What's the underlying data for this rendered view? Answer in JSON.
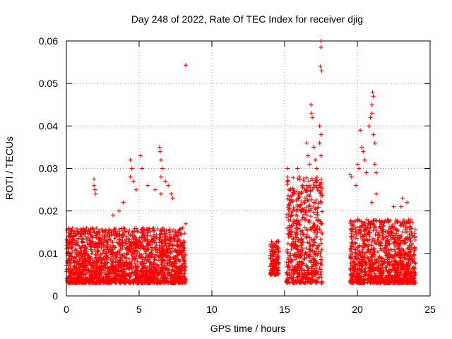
{
  "chart_data": {
    "type": "scatter",
    "title": "Day 248 of 2022, Rate Of TEC Index for receiver djig",
    "xlabel": "GPS time / hours",
    "ylabel": "ROTI / TECUs",
    "xlim": [
      0,
      25
    ],
    "ylim": [
      0,
      0.06
    ],
    "xticks": [
      0,
      5,
      10,
      15,
      20,
      25
    ],
    "xtick_labels": [
      "0",
      "5",
      "10",
      "15",
      "20",
      "25"
    ],
    "yticks": [
      0,
      0.01,
      0.02,
      0.03,
      0.04,
      0.05,
      0.06
    ],
    "ytick_labels": [
      "0",
      "0.01",
      "0.02",
      "0.03",
      "0.04",
      "0.05",
      "0.06"
    ],
    "grid": true,
    "marker": "+",
    "series": [
      {
        "name": "ROTI",
        "color": "#ff0000",
        "segments": [
          {
            "x_start": 0.0,
            "x_end": 8.2,
            "y_min": 0.003,
            "y_max": 0.016
          },
          {
            "x_start": 14.0,
            "x_end": 14.6,
            "y_min": 0.005,
            "y_max": 0.013
          },
          {
            "x_start": 15.1,
            "x_end": 17.6,
            "y_min": 0.003,
            "y_max": 0.028
          },
          {
            "x_start": 19.5,
            "x_end": 24.0,
            "y_min": 0.003,
            "y_max": 0.018
          }
        ],
        "highlights": [
          {
            "x": 1.9,
            "y": 0.026
          },
          {
            "x": 1.95,
            "y": 0.025
          },
          {
            "x": 2.0,
            "y": 0.024
          },
          {
            "x": 1.9,
            "y": 0.0275
          },
          {
            "x": 3.2,
            "y": 0.019
          },
          {
            "x": 3.6,
            "y": 0.02
          },
          {
            "x": 3.9,
            "y": 0.022
          },
          {
            "x": 4.4,
            "y": 0.032
          },
          {
            "x": 4.5,
            "y": 0.03
          },
          {
            "x": 4.4,
            "y": 0.028
          },
          {
            "x": 4.6,
            "y": 0.027
          },
          {
            "x": 4.8,
            "y": 0.025
          },
          {
            "x": 5.1,
            "y": 0.033
          },
          {
            "x": 5.2,
            "y": 0.03
          },
          {
            "x": 5.6,
            "y": 0.026
          },
          {
            "x": 6.1,
            "y": 0.025
          },
          {
            "x": 6.5,
            "y": 0.024
          },
          {
            "x": 6.5,
            "y": 0.028
          },
          {
            "x": 6.4,
            "y": 0.035
          },
          {
            "x": 6.45,
            "y": 0.034
          },
          {
            "x": 6.5,
            "y": 0.032
          },
          {
            "x": 6.6,
            "y": 0.03
          },
          {
            "x": 6.8,
            "y": 0.027
          },
          {
            "x": 7.0,
            "y": 0.026
          },
          {
            "x": 7.2,
            "y": 0.024
          },
          {
            "x": 7.3,
            "y": 0.023
          },
          {
            "x": 8.2,
            "y": 0.0543
          },
          {
            "x": 8.2,
            "y": 0.017
          },
          {
            "x": 15.2,
            "y": 0.03
          },
          {
            "x": 15.3,
            "y": 0.025
          },
          {
            "x": 15.4,
            "y": 0.022
          },
          {
            "x": 15.9,
            "y": 0.03
          },
          {
            "x": 16.0,
            "y": 0.028
          },
          {
            "x": 16.2,
            "y": 0.026
          },
          {
            "x": 16.5,
            "y": 0.036
          },
          {
            "x": 16.6,
            "y": 0.033
          },
          {
            "x": 16.7,
            "y": 0.031
          },
          {
            "x": 16.8,
            "y": 0.045
          },
          {
            "x": 16.85,
            "y": 0.043
          },
          {
            "x": 16.9,
            "y": 0.042
          },
          {
            "x": 17.0,
            "y": 0.035
          },
          {
            "x": 17.1,
            "y": 0.032
          },
          {
            "x": 17.2,
            "y": 0.03
          },
          {
            "x": 17.5,
            "y": 0.06
          },
          {
            "x": 17.5,
            "y": 0.0585
          },
          {
            "x": 17.45,
            "y": 0.054
          },
          {
            "x": 17.55,
            "y": 0.053
          },
          {
            "x": 17.4,
            "y": 0.04
          },
          {
            "x": 17.5,
            "y": 0.038
          },
          {
            "x": 17.4,
            "y": 0.036
          },
          {
            "x": 17.5,
            "y": 0.033
          },
          {
            "x": 19.5,
            "y": 0.0285
          },
          {
            "x": 19.6,
            "y": 0.028
          },
          {
            "x": 19.9,
            "y": 0.026
          },
          {
            "x": 20.0,
            "y": 0.031
          },
          {
            "x": 20.1,
            "y": 0.03
          },
          {
            "x": 20.2,
            "y": 0.039
          },
          {
            "x": 20.3,
            "y": 0.035
          },
          {
            "x": 20.4,
            "y": 0.034
          },
          {
            "x": 20.5,
            "y": 0.032
          },
          {
            "x": 20.6,
            "y": 0.029
          },
          {
            "x": 20.8,
            "y": 0.04
          },
          {
            "x": 20.9,
            "y": 0.042
          },
          {
            "x": 21.0,
            "y": 0.043
          },
          {
            "x": 21.05,
            "y": 0.048
          },
          {
            "x": 21.1,
            "y": 0.047
          },
          {
            "x": 21.0,
            "y": 0.045
          },
          {
            "x": 21.1,
            "y": 0.038
          },
          {
            "x": 21.2,
            "y": 0.036
          },
          {
            "x": 21.2,
            "y": 0.031
          },
          {
            "x": 21.3,
            "y": 0.029
          },
          {
            "x": 21.3,
            "y": 0.024
          },
          {
            "x": 21.0,
            "y": 0.022
          },
          {
            "x": 22.5,
            "y": 0.021
          },
          {
            "x": 23.1,
            "y": 0.023
          },
          {
            "x": 23.4,
            "y": 0.022
          },
          {
            "x": 23.0,
            "y": 0.021
          }
        ]
      }
    ]
  }
}
